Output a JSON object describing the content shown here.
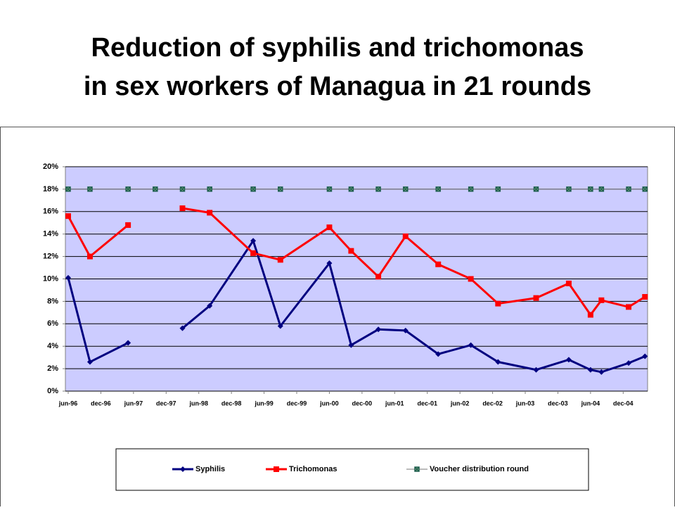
{
  "chart_data": {
    "type": "line",
    "title": [
      "Reduction of syphilis and trichomonas",
      "in sex workers of Managua in 21 rounds"
    ],
    "x": [
      "1996-06",
      "1996-10",
      "1997-05",
      "1997-10",
      "1998-03",
      "1998-08",
      "1999-04",
      "1999-09",
      "2000-06",
      "2000-10",
      "2001-03",
      "2001-08",
      "2002-02",
      "2002-08",
      "2003-01",
      "2003-08",
      "2004-02",
      "2004-06",
      "2004-08",
      "2005-01",
      "2005-04"
    ],
    "xlim": [
      "1996-06",
      "2005-05"
    ],
    "xticks": [
      {
        "value": "1996-06",
        "label": "jun-96"
      },
      {
        "value": "1996-12",
        "label": "dec-96"
      },
      {
        "value": "1997-06",
        "label": "jun-97"
      },
      {
        "value": "1997-12",
        "label": "dec-97"
      },
      {
        "value": "1998-06",
        "label": "jun-98"
      },
      {
        "value": "1998-12",
        "label": "dec-98"
      },
      {
        "value": "1999-06",
        "label": "jun-99"
      },
      {
        "value": "1999-12",
        "label": "dec-99"
      },
      {
        "value": "2000-06",
        "label": "jun-00"
      },
      {
        "value": "2000-12",
        "label": "dec-00"
      },
      {
        "value": "2001-06",
        "label": "jun-01"
      },
      {
        "value": "2001-12",
        "label": "dec-01"
      },
      {
        "value": "2002-06",
        "label": "jun-02"
      },
      {
        "value": "2002-12",
        "label": "dec-02"
      },
      {
        "value": "2003-06",
        "label": "jun-03"
      },
      {
        "value": "2003-12",
        "label": "dec-03"
      },
      {
        "value": "2004-06",
        "label": "jun-04"
      },
      {
        "value": "2004-12",
        "label": "dec-04"
      }
    ],
    "ylim": [
      0,
      20
    ],
    "yticks": [
      {
        "value": 0,
        "label": "0%"
      },
      {
        "value": 2,
        "label": "2%"
      },
      {
        "value": 4,
        "label": "4%"
      },
      {
        "value": 6,
        "label": "6%"
      },
      {
        "value": 8,
        "label": "8%"
      },
      {
        "value": 10,
        "label": "10%"
      },
      {
        "value": 12,
        "label": "12%"
      },
      {
        "value": 14,
        "label": "14%"
      },
      {
        "value": 16,
        "label": "16%"
      },
      {
        "value": 18,
        "label": "18%"
      },
      {
        "value": 20,
        "label": "20%"
      }
    ],
    "grid": true,
    "series": [
      {
        "name": "Syphilis",
        "color": "#000080",
        "marker": "diamond",
        "values": [
          10.1,
          2.6,
          4.3,
          null,
          5.6,
          7.6,
          13.4,
          5.8,
          11.4,
          4.1,
          5.5,
          5.4,
          3.3,
          4.1,
          2.6,
          1.9,
          2.8,
          1.9,
          1.7,
          2.5,
          3.1
        ]
      },
      {
        "name": "Trichomonas",
        "color": "#ff0000",
        "marker": "square",
        "values": [
          15.6,
          12.0,
          14.8,
          null,
          16.3,
          15.9,
          12.3,
          11.7,
          14.6,
          12.5,
          10.2,
          13.8,
          11.3,
          10.0,
          7.8,
          8.3,
          9.6,
          6.8,
          8.1,
          7.5,
          8.4
        ]
      },
      {
        "name": "Voucher distribution round",
        "color": "#1f5f4f",
        "marker": "xsquare",
        "values": [
          18,
          18,
          18,
          18,
          18,
          18,
          18,
          18,
          18,
          18,
          18,
          18,
          18,
          18,
          18,
          18,
          18,
          18,
          18,
          18,
          18
        ]
      }
    ]
  }
}
